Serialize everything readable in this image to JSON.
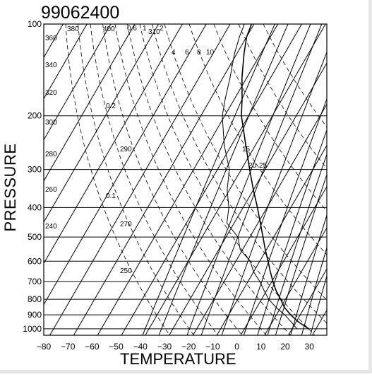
{
  "chart_data": {
    "type": "line",
    "title": "99062400",
    "xlabel": "TEMPERATURE",
    "ylabel": "PRESSURE",
    "xlim": [
      -80,
      35
    ],
    "ylim": [
      100,
      1050
    ],
    "y_scale": "log",
    "x_ticks": [
      "−80",
      "−70",
      "−60",
      "−50",
      "−40",
      "−30",
      "−20",
      "−10",
      "0",
      "10",
      "20",
      "30"
    ],
    "y_ticks": [
      "100",
      "200",
      "300",
      "400",
      "500",
      "600",
      "700",
      "800",
      "900",
      "1000"
    ],
    "grid": true,
    "skew_degrees_per_log10_pressure": 74,
    "dry_adiabat_labels": [
      "380",
      "400",
      "310",
      "300",
      "290",
      "280",
      "270",
      "260",
      "250",
      "240",
      "320",
      "340",
      "360"
    ],
    "dry_adiabats": [
      {
        "theta": 380,
        "label": "380"
      },
      {
        "theta": 400,
        "label": "400"
      },
      {
        "theta": 310,
        "label": "310"
      },
      {
        "theta": 360,
        "label": "360"
      },
      {
        "theta": 340,
        "label": "340"
      },
      {
        "theta": 320,
        "label": "320"
      },
      {
        "theta": 300,
        "label": "300"
      },
      {
        "theta": 290,
        "label": "290"
      },
      {
        "theta": 280,
        "label": "280"
      },
      {
        "theta": 270,
        "label": "270"
      },
      {
        "theta": 260,
        "label": "260"
      },
      {
        "theta": 250,
        "label": "250"
      },
      {
        "theta": 240,
        "label": "240"
      }
    ],
    "mixing_ratio_lines": [
      {
        "w": 0.1,
        "label": "0.1"
      },
      {
        "w": 0.2,
        "label": "0.2"
      },
      {
        "w": 0.6,
        "label": "0.6"
      },
      {
        "w": 1,
        "label": "1"
      },
      {
        "w": 2,
        "label": "2"
      },
      {
        "w": 4,
        "label": "4"
      },
      {
        "w": 6,
        "label": "6"
      },
      {
        "w": 8,
        "label": "8"
      },
      {
        "w": 10,
        "label": "10"
      },
      {
        "w": 15,
        "label": "15"
      },
      {
        "w": 20,
        "label": "20"
      },
      {
        "w": 25,
        "label": "25"
      }
    ],
    "series": [
      {
        "values": [
          {
            "p": 1000,
            "t": 27
          },
          {
            "p": 950,
            "t": 21
          },
          {
            "p": 900,
            "t": 16
          },
          {
            "p": 850,
            "t": 11.5
          },
          {
            "p": 800,
            "t": 8
          },
          {
            "p": 750,
            "t": 4
          },
          {
            "p": 700,
            "t": 0.5
          },
          {
            "p": 650,
            "t": -3
          },
          {
            "p": 600,
            "t": -6.5
          },
          {
            "p": 550,
            "t": -10.5
          },
          {
            "p": 500,
            "t": -14.5
          },
          {
            "p": 450,
            "t": -19
          },
          {
            "p": 400,
            "t": -24
          },
          {
            "p": 350,
            "t": -30
          },
          {
            "p": 300,
            "t": -36.5
          },
          {
            "p": 250,
            "t": -44
          },
          {
            "p": 200,
            "t": -53
          },
          {
            "p": 175,
            "t": -57
          },
          {
            "p": 150,
            "t": -62
          },
          {
            "p": 125,
            "t": -67
          },
          {
            "p": 110,
            "t": -70
          },
          {
            "p": 100,
            "t": -71
          }
        ]
      },
      {
        "values": [
          {
            "p": 1000,
            "t": 22
          },
          {
            "p": 950,
            "t": 18
          },
          {
            "p": 900,
            "t": 13.5
          },
          {
            "p": 850,
            "t": 8
          },
          {
            "p": 800,
            "t": 3
          },
          {
            "p": 750,
            "t": -1
          },
          {
            "p": 700,
            "t": -5
          },
          {
            "p": 650,
            "t": -10
          },
          {
            "p": 600,
            "t": -14
          },
          {
            "p": 550,
            "t": -21
          },
          {
            "p": 500,
            "t": -25
          },
          {
            "p": 450,
            "t": -33
          },
          {
            "p": 400,
            "t": -36
          },
          {
            "p": 350,
            "t": -41
          },
          {
            "p": 300,
            "t": -45
          },
          {
            "p": 250,
            "t": -53
          },
          {
            "p": 200,
            "t": -61
          },
          {
            "p": 175,
            "t": -64
          },
          {
            "p": 150,
            "t": -67
          },
          {
            "p": 125,
            "t": -71
          },
          {
            "p": 110,
            "t": -73
          },
          {
            "p": 100,
            "t": -74
          }
        ]
      }
    ]
  }
}
